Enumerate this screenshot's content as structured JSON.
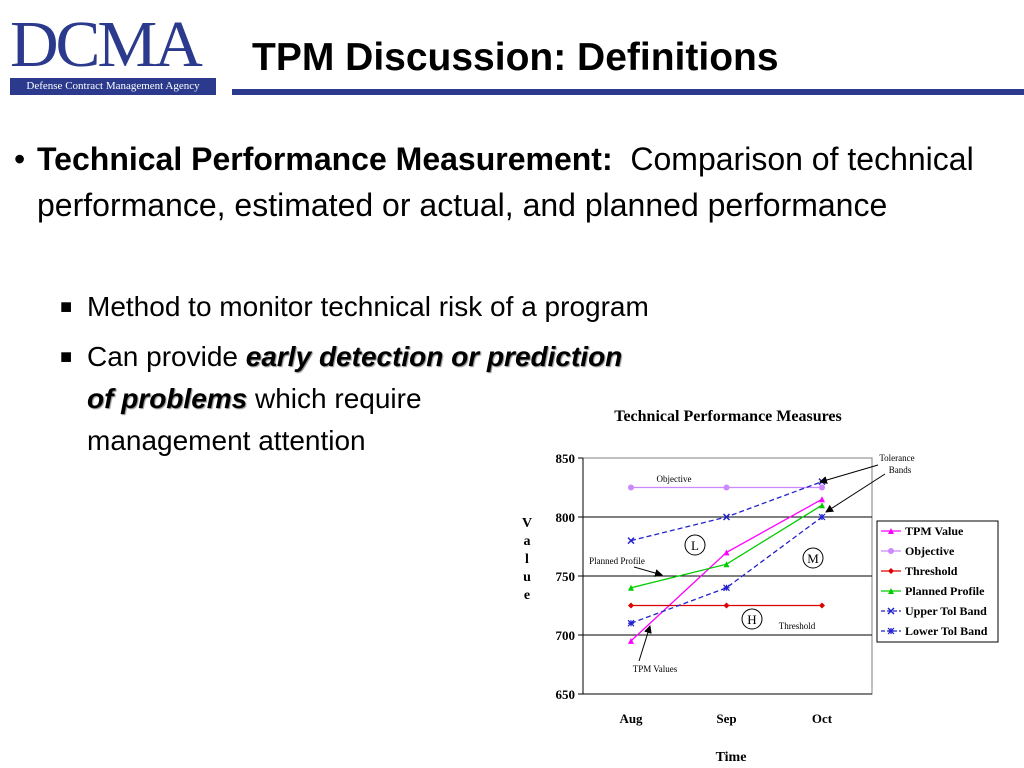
{
  "logo": {
    "wordmark": "DCMA",
    "agency": "Defense Contract Management Agency"
  },
  "title": "TPM Discussion:  Definitions",
  "bullet": {
    "term": "Technical Performance Measurement:",
    "definition": "Comparison of technical performance, estimated or actual, and planned performance"
  },
  "subbullets": [
    {
      "text": "Method to monitor technical risk of a program"
    },
    {
      "prefix": "Can provide",
      "emphasis_line1": "early detection or prediction",
      "emphasis_line2": "of problems",
      "suffix_line2": "which require",
      "line3": "management attention"
    }
  ],
  "colors": {
    "brand": "#2b3a8c",
    "tpm": "#ff00ff",
    "objective": "#cc88ff",
    "threshold": "#dd0000",
    "planned": "#00cc00",
    "tol": "#2222cc"
  },
  "chart_data": {
    "type": "line",
    "title": "Technical Performance Measures",
    "xlabel": "Time",
    "ylabel": "Value",
    "categories": [
      "Aug",
      "Sep",
      "Oct"
    ],
    "ylim": [
      650,
      850
    ],
    "yticks": [
      650,
      700,
      750,
      800,
      850
    ],
    "grid": true,
    "legend_position": "right",
    "series": [
      {
        "name": "TPM Value",
        "values": [
          695,
          770,
          815
        ],
        "color": "#ff00ff",
        "marker": "triangle",
        "dashed": false
      },
      {
        "name": "Objective",
        "values": [
          825,
          825,
          825
        ],
        "color": "#cc88ff",
        "marker": "circle",
        "dashed": false
      },
      {
        "name": "Threshold",
        "values": [
          725,
          725,
          725
        ],
        "color": "#dd0000",
        "marker": "diamond",
        "dashed": false
      },
      {
        "name": "Planned Profile",
        "values": [
          740,
          760,
          810
        ],
        "color": "#00cc00",
        "marker": "triangle",
        "dashed": false
      },
      {
        "name": "Upper Tol Band",
        "values": [
          780,
          800,
          830
        ],
        "color": "#2222cc",
        "marker": "x",
        "dashed": true
      },
      {
        "name": "Lower Tol Band",
        "values": [
          710,
          740,
          800
        ],
        "color": "#2222cc",
        "marker": "star",
        "dashed": true
      }
    ],
    "annotations": {
      "objective": "Objective",
      "tolerance_line1": "Tolerance",
      "tolerance_line2": "Bands",
      "planned": "Planned Profile",
      "threshold": "Threshold",
      "tpm": "TPM Values",
      "circle_l": "L",
      "circle_m": "M",
      "circle_h": "H"
    }
  }
}
